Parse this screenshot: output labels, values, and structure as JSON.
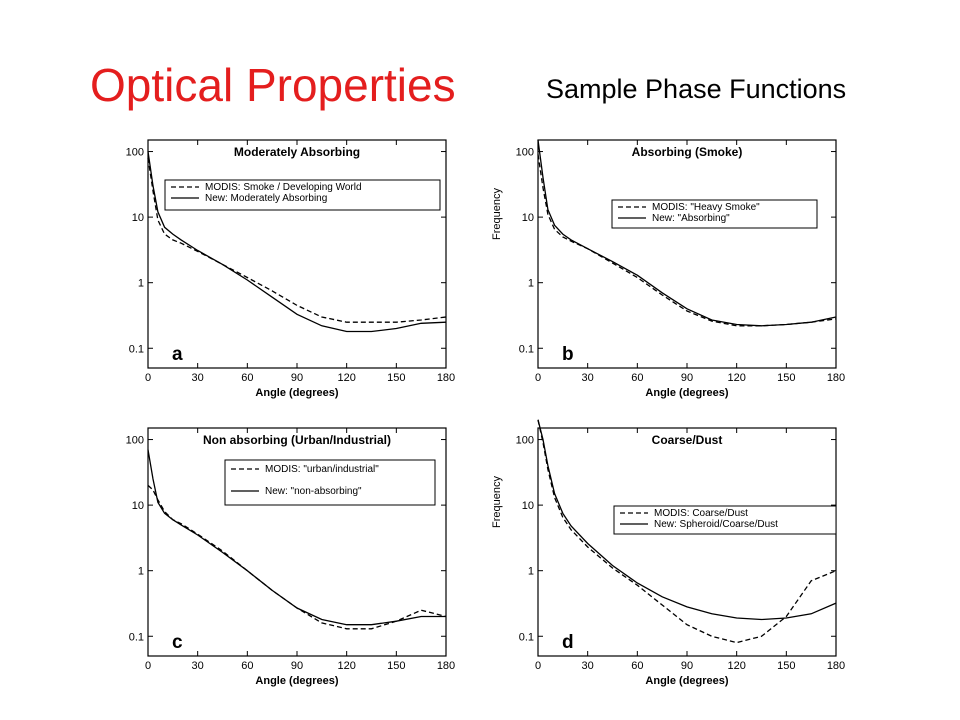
{
  "slide": {
    "title": "Optical Properties",
    "subtitle": "Sample Phase Functions",
    "title_color": "#e41e1e"
  },
  "chart_data": [
    {
      "type": "line",
      "letter": "a",
      "title": "Moderately Absorbing",
      "xlabel": "Angle (degrees)",
      "ylabel": "",
      "yscale": "log",
      "xlim": [
        0,
        180
      ],
      "ylim": [
        0.05,
        150
      ],
      "xticks": [
        "0",
        "30",
        "60",
        "90",
        "120",
        "150",
        "180"
      ],
      "yticks": [
        "100",
        "10",
        "1",
        "0.1"
      ],
      "legend": "top-right",
      "series": [
        {
          "name": "MODIS: Smoke / Developing World",
          "style": "dashed",
          "x": [
            0,
            3,
            6,
            10,
            15,
            20,
            30,
            45,
            60,
            75,
            90,
            105,
            120,
            135,
            150,
            165,
            180
          ],
          "y": [
            80,
            25,
            9,
            5.5,
            4.5,
            4.0,
            3.0,
            1.9,
            1.2,
            0.75,
            0.45,
            0.3,
            0.25,
            0.25,
            0.25,
            0.27,
            0.3
          ]
        },
        {
          "name": "New: Moderately Absorbing",
          "style": "solid",
          "x": [
            0,
            3,
            6,
            10,
            15,
            20,
            30,
            45,
            60,
            75,
            90,
            105,
            120,
            135,
            150,
            165,
            180
          ],
          "y": [
            100,
            30,
            12,
            7,
            5.5,
            4.5,
            3.1,
            1.9,
            1.1,
            0.6,
            0.33,
            0.22,
            0.18,
            0.18,
            0.2,
            0.24,
            0.25
          ]
        }
      ]
    },
    {
      "type": "line",
      "letter": "b",
      "title": "Absorbing (Smoke)",
      "xlabel": "Angle (degrees)",
      "ylabel": "Frequency",
      "yscale": "log",
      "xlim": [
        0,
        180
      ],
      "ylim": [
        0.05,
        150
      ],
      "xticks": [
        "0",
        "30",
        "60",
        "90",
        "120",
        "150",
        "180"
      ],
      "yticks": [
        "100",
        "10",
        "1",
        "0.1"
      ],
      "legend": "top-right",
      "series": [
        {
          "name": "MODIS: \"Heavy Smoke\"",
          "style": "dashed",
          "x": [
            0,
            3,
            6,
            10,
            15,
            20,
            30,
            45,
            60,
            75,
            90,
            105,
            120,
            135,
            150,
            165,
            180
          ],
          "y": [
            90,
            28,
            11,
            6.5,
            5.0,
            4.3,
            3.3,
            2.0,
            1.2,
            0.65,
            0.37,
            0.26,
            0.22,
            0.22,
            0.23,
            0.25,
            0.28
          ]
        },
        {
          "name": "New: \"Absorbing\"",
          "style": "solid",
          "x": [
            0,
            3,
            6,
            10,
            15,
            20,
            30,
            45,
            60,
            75,
            90,
            105,
            120,
            135,
            150,
            165,
            180
          ],
          "y": [
            150,
            40,
            13,
            7.5,
            5.5,
            4.5,
            3.3,
            2.1,
            1.3,
            0.7,
            0.4,
            0.27,
            0.23,
            0.22,
            0.23,
            0.25,
            0.3
          ]
        }
      ]
    },
    {
      "type": "line",
      "letter": "c",
      "title": "Non absorbing (Urban/Industrial)",
      "xlabel": "Angle (degrees)",
      "ylabel": "",
      "yscale": "log",
      "xlim": [
        0,
        180
      ],
      "ylim": [
        0.05,
        150
      ],
      "xticks": [
        "0",
        "30",
        "60",
        "90",
        "120",
        "150",
        "180"
      ],
      "yticks": [
        "100",
        "10",
        "1",
        "0.1"
      ],
      "legend": "top-right",
      "series": [
        {
          "name": "MODIS: \"urban/industrial\"",
          "style": "dashed",
          "x": [
            0,
            3,
            6,
            10,
            15,
            20,
            30,
            45,
            60,
            75,
            90,
            105,
            120,
            135,
            150,
            165,
            180
          ],
          "y": [
            20,
            17,
            12,
            8,
            6,
            5.2,
            3.6,
            2.0,
            1.0,
            0.5,
            0.27,
            0.16,
            0.13,
            0.13,
            0.17,
            0.25,
            0.2
          ]
        },
        {
          "name": "New: \"non-absorbing\"",
          "style": "solid",
          "x": [
            0,
            3,
            6,
            10,
            15,
            20,
            30,
            45,
            60,
            75,
            90,
            105,
            120,
            135,
            150,
            165,
            180
          ],
          "y": [
            70,
            25,
            11,
            7.5,
            6,
            5.0,
            3.5,
            1.9,
            1.0,
            0.5,
            0.27,
            0.18,
            0.15,
            0.15,
            0.17,
            0.2,
            0.2
          ]
        }
      ]
    },
    {
      "type": "line",
      "letter": "d",
      "title": "Coarse/Dust",
      "xlabel": "Angle (degrees)",
      "ylabel": "Frequency",
      "yscale": "log",
      "xlim": [
        0,
        180
      ],
      "ylim": [
        0.05,
        150
      ],
      "xticks": [
        "0",
        "30",
        "60",
        "90",
        "120",
        "150",
        "180"
      ],
      "yticks": [
        "100",
        "10",
        "1",
        "0.1"
      ],
      "legend": "right",
      "series": [
        {
          "name": "MODIS: Coarse/Dust",
          "style": "dashed",
          "x": [
            0,
            3,
            6,
            10,
            15,
            20,
            30,
            45,
            60,
            75,
            90,
            105,
            120,
            135,
            150,
            165,
            180
          ],
          "y": [
            200,
            90,
            35,
            13,
            6.5,
            4.2,
            2.3,
            1.1,
            0.6,
            0.3,
            0.15,
            0.1,
            0.08,
            0.1,
            0.2,
            0.7,
            1.0
          ]
        },
        {
          "name": "New: Spheroid/Coarse/Dust",
          "style": "solid",
          "x": [
            0,
            3,
            6,
            10,
            15,
            20,
            30,
            45,
            60,
            75,
            90,
            105,
            120,
            135,
            150,
            165,
            180
          ],
          "y": [
            200,
            100,
            40,
            15,
            7.5,
            4.8,
            2.6,
            1.2,
            0.65,
            0.4,
            0.28,
            0.22,
            0.19,
            0.18,
            0.19,
            0.22,
            0.32
          ]
        }
      ]
    }
  ]
}
